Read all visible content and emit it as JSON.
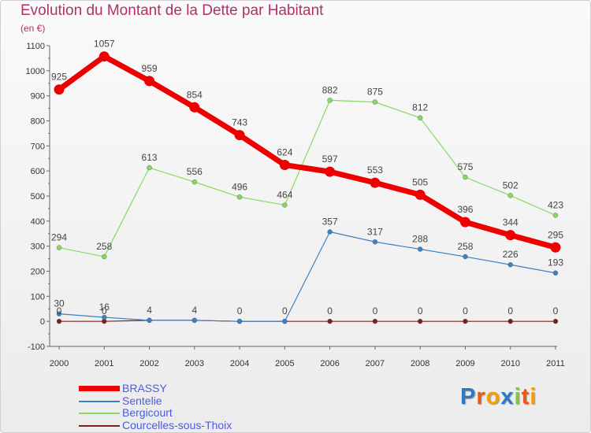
{
  "chart_data": {
    "type": "line",
    "title": "Evolution du Montant de la Dette par Habitant",
    "subtitle": "(en €)",
    "x": [
      "2000",
      "2001",
      "2002",
      "2003",
      "2004",
      "2005",
      "2006",
      "2007",
      "2008",
      "2009",
      "2010",
      "2011"
    ],
    "ylim": [
      -100,
      1100
    ],
    "yticks": [
      -100,
      0,
      100,
      200,
      300,
      400,
      500,
      600,
      700,
      800,
      900,
      1000,
      1100
    ],
    "grid": false,
    "legend_position": "bottom-left",
    "series": [
      {
        "name": "BRASSY",
        "color": "#ee0000",
        "values": [
          925,
          1057,
          959,
          854,
          743,
          624,
          597,
          553,
          505,
          396,
          344,
          295
        ],
        "labels": [
          "925",
          "1057",
          "959",
          "854",
          "743",
          "624",
          "597",
          "553",
          "505",
          "396",
          "344",
          "295"
        ]
      },
      {
        "name": "Sentelie",
        "color": "#3a82c4",
        "values": [
          30,
          16,
          4,
          4,
          0,
          0,
          357,
          317,
          288,
          258,
          226,
          193
        ],
        "labels": [
          "30",
          "16",
          "",
          "",
          "",
          "",
          "357",
          "317",
          "288",
          "258",
          "226",
          "193"
        ]
      },
      {
        "name": "Bergicourt",
        "color": "#88d860",
        "values": [
          294,
          258,
          613,
          556,
          496,
          464,
          882,
          875,
          812,
          575,
          502,
          423
        ],
        "labels": [
          "294",
          "258",
          "613",
          "556",
          "496",
          "464",
          "882",
          "875",
          "812",
          "575",
          "502",
          "423"
        ]
      },
      {
        "name": "Courcelles-sous-Thoix",
        "color": "#7a2020",
        "values": [
          0,
          0,
          4,
          4,
          0,
          0,
          0,
          0,
          0,
          0,
          0,
          0
        ],
        "labels": [
          "0",
          "0",
          "4",
          "4",
          "0",
          "0",
          "0",
          "0",
          "0",
          "0",
          "0",
          "0"
        ]
      }
    ]
  },
  "legend": [
    {
      "label": "BRASSY",
      "color": "#ee0000"
    },
    {
      "label": "Sentelie",
      "color": "#3a82c4"
    },
    {
      "label": "Bergicourt",
      "color": "#88d860"
    },
    {
      "label": "Courcelles-sous-Thoix",
      "color": "#7a2020"
    }
  ],
  "logo": {
    "text": "Proxiti",
    "letters": [
      {
        "ch": "P",
        "color": "#2e78c8"
      },
      {
        "ch": "r",
        "color": "#e85a1a"
      },
      {
        "ch": "o",
        "color": "#f2a000"
      },
      {
        "ch": "x",
        "color": "#2e78c8"
      },
      {
        "ch": "i",
        "color": "#86c440"
      },
      {
        "ch": "t",
        "color": "#e85a1a"
      },
      {
        "ch": "i",
        "color": "#f2a000"
      }
    ]
  }
}
